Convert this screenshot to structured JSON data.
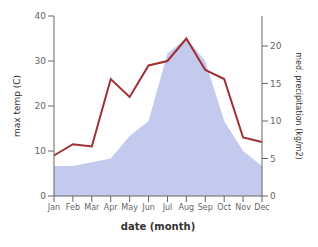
{
  "chart_data": {
    "type": "line",
    "xlabel": "date (month)",
    "ylabel": "max temp (C)",
    "y2label": "med. precipitation (kg/m2)",
    "categories": [
      "Jan",
      "Feb",
      "Mar",
      "Apr",
      "May",
      "Jun",
      "Jul",
      "Aug",
      "Sep",
      "Oct",
      "Nov",
      "Dec"
    ],
    "series": [
      {
        "type": "area",
        "axis": "y2",
        "color": "#b0b8e8",
        "values": [
          4,
          4,
          4.5,
          5,
          8,
          10,
          19,
          21,
          18,
          10,
          6,
          4
        ]
      },
      {
        "type": "line",
        "axis": "y",
        "color": "#a03030",
        "values": [
          9,
          11.5,
          11,
          26,
          22,
          29,
          30,
          35,
          28,
          26,
          13,
          12
        ]
      }
    ],
    "ylim": [
      0,
      40
    ],
    "yticks": [
      0,
      10,
      20,
      30,
      40
    ],
    "y2lim": [
      0,
      24
    ],
    "y2ticks": [
      0,
      5,
      10,
      15,
      20
    ]
  }
}
